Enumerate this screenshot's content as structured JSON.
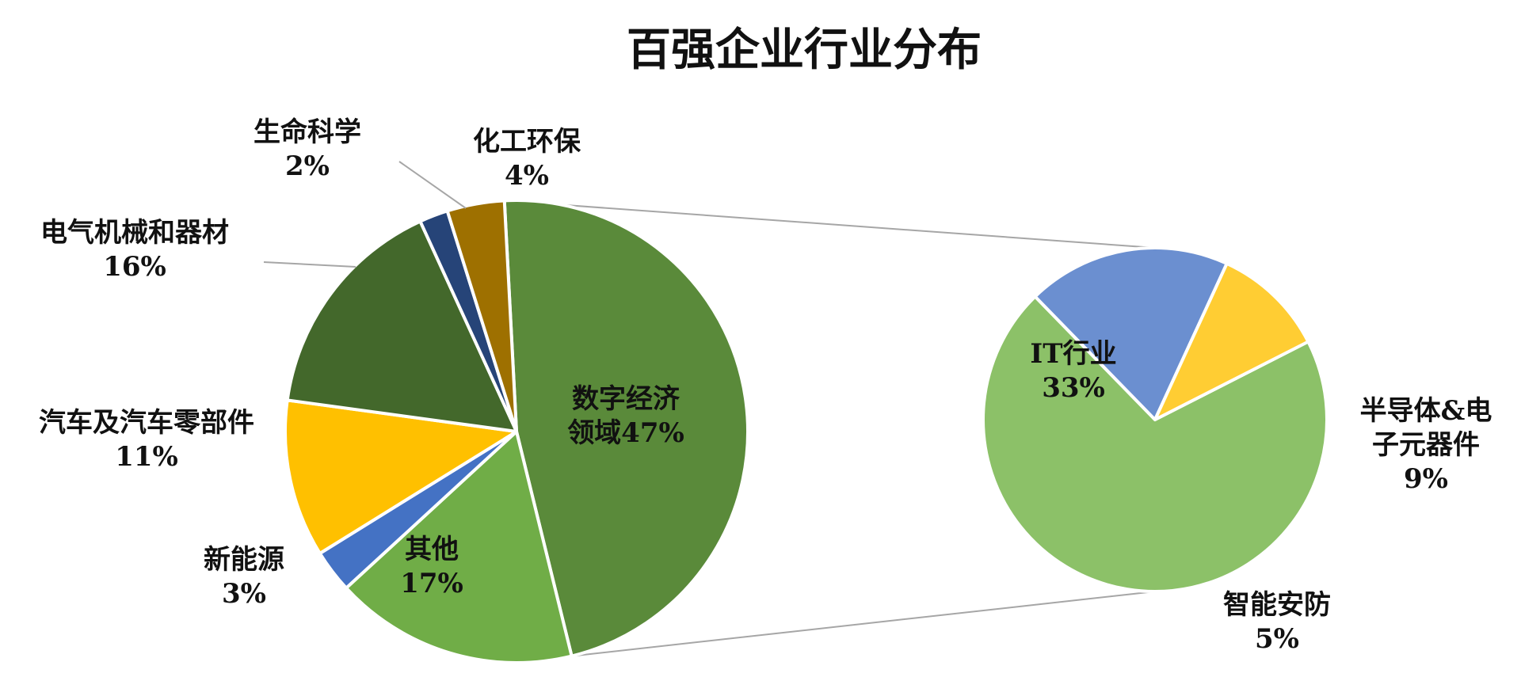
{
  "chart_data": {
    "type": "pie",
    "title": "百强企业行业分布",
    "main": {
      "slices": [
        {
          "name": "数字经济领域",
          "value": 47,
          "color": "#5a8a3a",
          "label_lines": [
            "数字经济",
            "领域47%"
          ]
        },
        {
          "name": "其他",
          "value": 17,
          "color": "#70ad47",
          "label_lines": [
            "其他",
            "17%"
          ]
        },
        {
          "name": "新能源",
          "value": 3,
          "color": "#4472c4",
          "label_lines": [
            "新能源",
            "3%"
          ]
        },
        {
          "name": "汽车及汽车零部件",
          "value": 11,
          "color": "#ffc000",
          "label_lines": [
            "汽车及汽车零部件",
            "11%"
          ]
        },
        {
          "name": "电气机械和器材",
          "value": 16,
          "color": "#43682b",
          "label_lines": [
            "电气机械和器材",
            "16%"
          ]
        },
        {
          "name": "生命科学",
          "value": 2,
          "color": "#264478",
          "label_lines": [
            "生命科学",
            "2%"
          ]
        },
        {
          "name": "化工环保",
          "value": 4,
          "color": "#9e7000",
          "label_lines": [
            "化工环保",
            "4%"
          ]
        }
      ]
    },
    "breakdown": {
      "parent": "数字经济领域",
      "slices": [
        {
          "name": "IT行业",
          "value": 33,
          "color": "#8cc168",
          "label_lines": [
            "IT行业",
            "33%"
          ]
        },
        {
          "name": "半导体&电子元器件",
          "value": 9,
          "color": "#6b8fd0",
          "label_lines": [
            "半导体&电",
            "子元器件",
            "9%"
          ]
        },
        {
          "name": "智能安防",
          "value": 5,
          "color": "#ffcd33",
          "label_lines": [
            "智能安防",
            "5%"
          ]
        }
      ]
    }
  }
}
